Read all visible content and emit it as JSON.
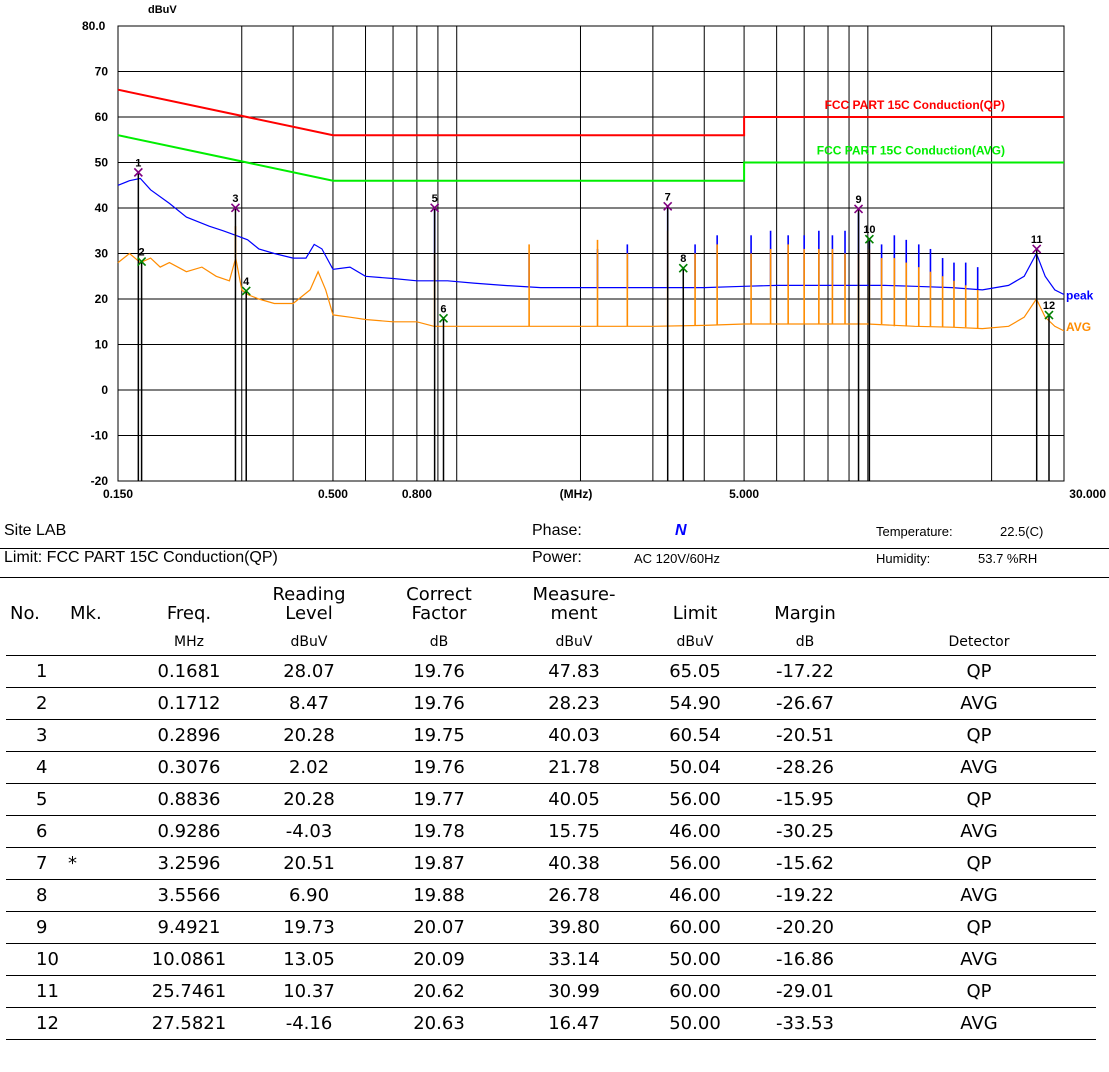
{
  "chart_data": {
    "type": "line",
    "y_unit": "dBuV",
    "x_unit": "(MHz)",
    "x_scale": "log",
    "xlim": [
      0.15,
      30.0
    ],
    "ylim": [
      -20,
      80
    ],
    "y_ticks": [
      "80.0",
      "70",
      "60",
      "50",
      "40",
      "30",
      "20",
      "10",
      "0",
      "-10",
      "-20"
    ],
    "y_tick_values": [
      80,
      70,
      60,
      50,
      40,
      30,
      20,
      10,
      0,
      -10,
      -20
    ],
    "x_ticks": [
      {
        "label": "0.150",
        "value": 0.15
      },
      {
        "label": "0.500",
        "value": 0.5
      },
      {
        "label": "0.800",
        "value": 0.8
      },
      {
        "label": "5.000",
        "value": 5.0
      },
      {
        "label": "30.000",
        "value": 30.0
      }
    ],
    "grid_x_values": [
      0.3,
      0.4,
      0.5,
      0.6,
      0.7,
      0.8,
      0.9,
      1,
      2,
      3,
      4,
      5,
      6,
      7,
      8,
      9,
      10,
      20
    ],
    "limit_lines": [
      {
        "name": "FCC PART 15C  Conduction(QP)",
        "color": "#ff0000",
        "points": [
          [
            0.15,
            66
          ],
          [
            0.5,
            56
          ],
          [
            5.0,
            56
          ],
          [
            5.0,
            60
          ],
          [
            30.0,
            60
          ]
        ]
      },
      {
        "name": "FCC PART 15C  Conduction(AVG)",
        "color": "#00ee00",
        "points": [
          [
            0.15,
            56
          ],
          [
            0.5,
            46
          ],
          [
            5.0,
            46
          ],
          [
            5.0,
            50
          ],
          [
            30.0,
            50
          ]
        ]
      }
    ],
    "series": [
      {
        "name": "peak",
        "color": "#0000ff",
        "points": [
          [
            0.15,
            45
          ],
          [
            0.16,
            46
          ],
          [
            0.17,
            46.5
          ],
          [
            0.18,
            44
          ],
          [
            0.2,
            41
          ],
          [
            0.22,
            38
          ],
          [
            0.25,
            36
          ],
          [
            0.27,
            35
          ],
          [
            0.29,
            34
          ],
          [
            0.31,
            33
          ],
          [
            0.33,
            31
          ],
          [
            0.36,
            30
          ],
          [
            0.4,
            29
          ],
          [
            0.43,
            29
          ],
          [
            0.45,
            32
          ],
          [
            0.47,
            31
          ],
          [
            0.5,
            26.5
          ],
          [
            0.55,
            27
          ],
          [
            0.6,
            25
          ],
          [
            0.7,
            24.5
          ],
          [
            0.8,
            24
          ],
          [
            0.88,
            24
          ],
          [
            0.95,
            24
          ],
          [
            1.1,
            23.5
          ],
          [
            1.3,
            23
          ],
          [
            1.6,
            22.5
          ],
          [
            2,
            22.5
          ],
          [
            2.5,
            22.5
          ],
          [
            3,
            22.5
          ],
          [
            3.5,
            22.5
          ],
          [
            4,
            22.5
          ],
          [
            5,
            22.8
          ],
          [
            6,
            23
          ],
          [
            7,
            23
          ],
          [
            8,
            23
          ],
          [
            9,
            23
          ],
          [
            10,
            23
          ],
          [
            11,
            23
          ],
          [
            13,
            22.8
          ],
          [
            16,
            22.5
          ],
          [
            19,
            22
          ],
          [
            22,
            23
          ],
          [
            24,
            25
          ],
          [
            25.7,
            30
          ],
          [
            27,
            25
          ],
          [
            28.5,
            22
          ],
          [
            30,
            21
          ]
        ],
        "spikes": [
          [
            0.8836,
            40
          ],
          [
            1.5,
            30
          ],
          [
            2.2,
            31
          ],
          [
            2.6,
            32
          ],
          [
            3.2596,
            40
          ],
          [
            3.8,
            32
          ],
          [
            4.3,
            34
          ],
          [
            5.2,
            34
          ],
          [
            5.8,
            35
          ],
          [
            6.4,
            34
          ],
          [
            7.0,
            34
          ],
          [
            7.6,
            35
          ],
          [
            8.2,
            34
          ],
          [
            8.8,
            35
          ],
          [
            9.4921,
            39
          ],
          [
            10.0861,
            33
          ],
          [
            10.8,
            32
          ],
          [
            11.6,
            34
          ],
          [
            12.4,
            33
          ],
          [
            13.3,
            32
          ],
          [
            14.2,
            31
          ],
          [
            15.2,
            29
          ],
          [
            16.2,
            28
          ],
          [
            17.3,
            28
          ],
          [
            18.5,
            27
          ]
        ]
      },
      {
        "name": "AVG",
        "color": "#ff8c00",
        "points": [
          [
            0.15,
            28
          ],
          [
            0.16,
            30
          ],
          [
            0.17,
            28
          ],
          [
            0.18,
            29
          ],
          [
            0.19,
            27
          ],
          [
            0.2,
            28
          ],
          [
            0.22,
            26
          ],
          [
            0.24,
            27
          ],
          [
            0.26,
            25
          ],
          [
            0.28,
            24
          ],
          [
            0.29,
            29
          ],
          [
            0.3,
            22
          ],
          [
            0.31,
            21
          ],
          [
            0.33,
            20
          ],
          [
            0.36,
            19
          ],
          [
            0.4,
            19
          ],
          [
            0.44,
            22
          ],
          [
            0.46,
            26
          ],
          [
            0.48,
            22
          ],
          [
            0.5,
            16.5
          ],
          [
            0.55,
            16
          ],
          [
            0.6,
            15.5
          ],
          [
            0.7,
            15
          ],
          [
            0.8,
            15
          ],
          [
            0.88,
            14
          ],
          [
            0.95,
            14
          ],
          [
            1.1,
            14
          ],
          [
            1.3,
            14
          ],
          [
            1.6,
            14
          ],
          [
            2,
            14
          ],
          [
            2.5,
            14
          ],
          [
            3,
            14
          ],
          [
            4,
            14.2
          ],
          [
            5,
            14.5
          ],
          [
            6,
            14.5
          ],
          [
            7,
            14.5
          ],
          [
            8,
            14.5
          ],
          [
            10,
            14.5
          ],
          [
            13,
            14
          ],
          [
            16,
            13.8
          ],
          [
            19,
            13.5
          ],
          [
            22,
            14
          ],
          [
            24,
            16
          ],
          [
            25.7,
            20
          ],
          [
            27,
            16
          ],
          [
            28.5,
            14
          ],
          [
            30,
            13
          ]
        ],
        "spikes": [
          [
            0.2896,
            36
          ],
          [
            0.8836,
            30
          ],
          [
            1.5,
            32
          ],
          [
            2.2,
            33
          ],
          [
            2.6,
            30
          ],
          [
            3.2596,
            35
          ],
          [
            3.8,
            30
          ],
          [
            4.3,
            32
          ],
          [
            5.2,
            30
          ],
          [
            5.8,
            31
          ],
          [
            6.4,
            32
          ],
          [
            7.0,
            31
          ],
          [
            7.6,
            31
          ],
          [
            8.2,
            31
          ],
          [
            8.8,
            30
          ],
          [
            9.4921,
            30
          ],
          [
            10.0861,
            31
          ],
          [
            10.8,
            29
          ],
          [
            11.6,
            29
          ],
          [
            12.4,
            28
          ],
          [
            13.3,
            27
          ],
          [
            14.2,
            26
          ],
          [
            15.2,
            25
          ],
          [
            16.2,
            24
          ],
          [
            17.3,
            23
          ],
          [
            18.5,
            22
          ]
        ]
      }
    ],
    "markers": [
      {
        "label": "1",
        "x": 0.1681,
        "y": 47.83,
        "color": "#800080"
      },
      {
        "label": "2",
        "x": 0.1712,
        "y": 28.23,
        "color": "#008000"
      },
      {
        "label": "3",
        "x": 0.2896,
        "y": 40.03,
        "color": "#800080"
      },
      {
        "label": "4",
        "x": 0.3076,
        "y": 21.78,
        "color": "#008000"
      },
      {
        "label": "5",
        "x": 0.8836,
        "y": 40.05,
        "color": "#800080"
      },
      {
        "label": "6",
        "x": 0.9286,
        "y": 15.75,
        "color": "#008000"
      },
      {
        "label": "7",
        "x": 3.2596,
        "y": 40.38,
        "color": "#800080"
      },
      {
        "label": "8",
        "x": 3.5566,
        "y": 26.78,
        "color": "#008000"
      },
      {
        "label": "9",
        "x": 9.4921,
        "y": 39.8,
        "color": "#800080"
      },
      {
        "label": "10",
        "x": 10.0861,
        "y": 33.14,
        "color": "#008000"
      },
      {
        "label": "11",
        "x": 25.7461,
        "y": 30.99,
        "color": "#800080"
      },
      {
        "label": "12",
        "x": 27.5821,
        "y": 16.47,
        "color": "#008000"
      }
    ]
  },
  "info": {
    "site": "Site  LAB",
    "limit": "Limit: FCC PART 15C  Conduction(QP)",
    "phase_label": "Phase:",
    "phase_value": "N",
    "power_label": "Power:",
    "power_value": "AC 120V/60Hz",
    "temperature_label": "Temperature:",
    "temperature_value": "22.5(C)",
    "humidity_label": "Humidity:",
    "humidity_value": "53.7 %RH"
  },
  "table": {
    "headers": [
      "No.",
      "Mk.",
      "Freq.",
      "Reading Level",
      "Correct Factor",
      "Measure- ment",
      "Limit",
      "Margin",
      ""
    ],
    "units": [
      "",
      "",
      "MHz",
      "dBuV",
      "dB",
      "dBuV",
      "dBuV",
      "dB",
      "Detector"
    ],
    "rows": [
      [
        "1",
        "",
        "0.1681",
        "28.07",
        "19.76",
        "47.83",
        "65.05",
        "-17.22",
        "QP"
      ],
      [
        "2",
        "",
        "0.1712",
        "8.47",
        "19.76",
        "28.23",
        "54.90",
        "-26.67",
        "AVG"
      ],
      [
        "3",
        "",
        "0.2896",
        "20.28",
        "19.75",
        "40.03",
        "60.54",
        "-20.51",
        "QP"
      ],
      [
        "4",
        "",
        "0.3076",
        "2.02",
        "19.76",
        "21.78",
        "50.04",
        "-28.26",
        "AVG"
      ],
      [
        "5",
        "",
        "0.8836",
        "20.28",
        "19.77",
        "40.05",
        "56.00",
        "-15.95",
        "QP"
      ],
      [
        "6",
        "",
        "0.9286",
        "-4.03",
        "19.78",
        "15.75",
        "46.00",
        "-30.25",
        "AVG"
      ],
      [
        "7",
        "*",
        "3.2596",
        "20.51",
        "19.87",
        "40.38",
        "56.00",
        "-15.62",
        "QP"
      ],
      [
        "8",
        "",
        "3.5566",
        "6.90",
        "19.88",
        "26.78",
        "46.00",
        "-19.22",
        "AVG"
      ],
      [
        "9",
        "",
        "9.4921",
        "19.73",
        "20.07",
        "39.80",
        "60.00",
        "-20.20",
        "QP"
      ],
      [
        "10",
        "",
        "10.0861",
        "13.05",
        "20.09",
        "33.14",
        "50.00",
        "-16.86",
        "AVG"
      ],
      [
        "11",
        "",
        "25.7461",
        "10.37",
        "20.62",
        "30.99",
        "60.00",
        "-29.01",
        "QP"
      ],
      [
        "12",
        "",
        "27.5821",
        "-4.16",
        "20.63",
        "16.47",
        "50.00",
        "-33.53",
        "AVG"
      ]
    ]
  }
}
